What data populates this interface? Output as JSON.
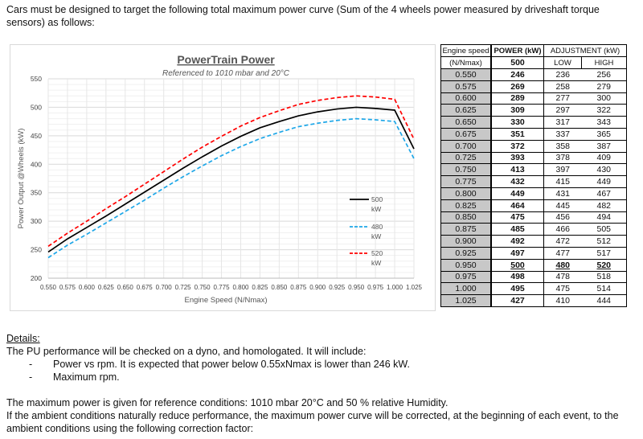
{
  "intro": "Cars must be designed to target the following total maximum power curve (Sum of the 4 wheels power measured by driveshaft torque sensors) as follows:",
  "chart_data": {
    "type": "line",
    "title": "PowerTrain Power",
    "subtitle": "Referenced to 1010 mbar and 20°C",
    "xlabel": "Engine Speed (N/Nmax)",
    "ylabel": "Power Output @Wheels (kW)",
    "ylim": [
      200,
      550
    ],
    "yticks": [
      "200",
      "250",
      "300",
      "350",
      "400",
      "450",
      "500",
      "550"
    ],
    "x": [
      "0.550",
      "0.575",
      "0.600",
      "0.625",
      "0.650",
      "0.675",
      "0.700",
      "0.725",
      "0.750",
      "0.775",
      "0.800",
      "0.825",
      "0.850",
      "0.875",
      "0.900",
      "0.925",
      "0.950",
      "0.975",
      "1.000",
      "1.025"
    ],
    "grid": true,
    "legend": "right",
    "series": [
      {
        "name": "500 kW",
        "color": "#000000",
        "dash": "solid",
        "values": [
          246,
          269,
          289,
          309,
          330,
          351,
          372,
          393,
          413,
          432,
          449,
          464,
          475,
          485,
          492,
          497,
          500,
          498,
          495,
          427
        ]
      },
      {
        "name": "480 kW",
        "color": "#1ea7e8",
        "dash": "dashed",
        "values": [
          236,
          258,
          277,
          297,
          317,
          337,
          358,
          378,
          397,
          415,
          431,
          445,
          456,
          466,
          472,
          477,
          480,
          478,
          475,
          410
        ]
      },
      {
        "name": "520 kW",
        "color": "#ff0000",
        "dash": "dashed",
        "values": [
          256,
          279,
          300,
          322,
          343,
          365,
          387,
          409,
          430,
          449,
          467,
          482,
          494,
          505,
          512,
          517,
          520,
          518,
          514,
          444
        ]
      }
    ]
  },
  "table": {
    "h_speed1": "Engine speed",
    "h_speed2": "(N/Nmax)",
    "h_power": "POWER (kW)",
    "h_power_val": "500",
    "h_adj": "ADJUSTMENT (kW)",
    "h_low": "LOW",
    "h_high": "HIGH",
    "rows": [
      [
        "0.550",
        "246",
        "236",
        "256"
      ],
      [
        "0.575",
        "269",
        "258",
        "279"
      ],
      [
        "0.600",
        "289",
        "277",
        "300"
      ],
      [
        "0.625",
        "309",
        "297",
        "322"
      ],
      [
        "0.650",
        "330",
        "317",
        "343"
      ],
      [
        "0.675",
        "351",
        "337",
        "365"
      ],
      [
        "0.700",
        "372",
        "358",
        "387"
      ],
      [
        "0.725",
        "393",
        "378",
        "409"
      ],
      [
        "0.750",
        "413",
        "397",
        "430"
      ],
      [
        "0.775",
        "432",
        "415",
        "449"
      ],
      [
        "0.800",
        "449",
        "431",
        "467"
      ],
      [
        "0.825",
        "464",
        "445",
        "482"
      ],
      [
        "0.850",
        "475",
        "456",
        "494"
      ],
      [
        "0.875",
        "485",
        "466",
        "505"
      ],
      [
        "0.900",
        "492",
        "472",
        "512"
      ],
      [
        "0.925",
        "497",
        "477",
        "517"
      ],
      [
        "0.950",
        "500",
        "480",
        "520"
      ],
      [
        "0.975",
        "498",
        "478",
        "518"
      ],
      [
        "1.000",
        "495",
        "475",
        "514"
      ],
      [
        "1.025",
        "427",
        "410",
        "444"
      ]
    ]
  },
  "details": {
    "heading": "Details:",
    "line1": "The PU performance will be checked on a dyno, and homologated. It will include:",
    "bullets": [
      "Power vs rpm. It is expected that power below 0.55xNmax is lower than 246 kW.",
      "Maximum rpm."
    ],
    "p1": "The maximum power is given for reference conditions: 1010 mbar 20°C and 50 % relative Humidity.",
    "p2": "If the ambient conditions naturally reduce performance, the maximum power curve will be corrected, at the beginning of each event, to the ambient conditions using the following correction factor:"
  }
}
